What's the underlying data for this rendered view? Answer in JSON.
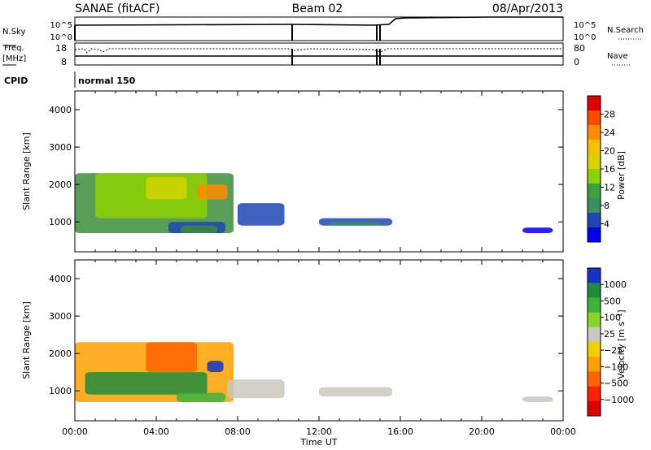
{
  "header": {
    "title": "SANAE (fitACF)",
    "beam": "Beam 02",
    "date": "08/Apr/2013"
  },
  "summary_panel": {
    "nsky_label": "N.Sky",
    "nsky_ticks": [
      "10^5",
      "10^0"
    ],
    "nsearch_label": "N.Search",
    "nsearch_ticks": [
      "10^5",
      "10^0"
    ],
    "freq_label": "Freq.",
    "freq_unit": "[MHz]",
    "freq_ticks": [
      "18",
      "8"
    ],
    "nave_label": "Nave",
    "nave_ticks": [
      "80",
      "0"
    ],
    "cpid_label": "CPID",
    "cpid_value": "normal 150"
  },
  "chart_data": [
    {
      "type": "heatmap",
      "name": "power-panel",
      "ylabel": "Slant Range [km]",
      "yticks": [
        "4000",
        "3000",
        "2000",
        "1000"
      ],
      "ylim": [
        200,
        4500
      ],
      "xlim_hours": [
        0,
        24
      ],
      "colorbar": {
        "label": "Power [dB]",
        "ticks": [
          "28",
          "24",
          "20",
          "16",
          "12",
          "8",
          "4"
        ],
        "colors": [
          "#e00000",
          "#ff4a00",
          "#ff8c00",
          "#f5c000",
          "#d4d400",
          "#8cd200",
          "#3ca03c",
          "#3c8c64",
          "#1e46b4",
          "#0000e6"
        ]
      },
      "patches": [
        {
          "x": [
            0.0,
            7.8
          ],
          "y": [
            700,
            2300
          ],
          "color": "#3c8c3c"
        },
        {
          "x": [
            1.0,
            6.5
          ],
          "y": [
            1100,
            2300
          ],
          "color": "#8cd200"
        },
        {
          "x": [
            3.5,
            5.5
          ],
          "y": [
            1600,
            2200
          ],
          "color": "#d4d400"
        },
        {
          "x": [
            6.0,
            7.5
          ],
          "y": [
            1600,
            2000
          ],
          "color": "#ff8c00"
        },
        {
          "x": [
            4.6,
            7.4
          ],
          "y": [
            700,
            1000
          ],
          "color": "#1e46b4"
        },
        {
          "x": [
            5.2,
            7.0
          ],
          "y": [
            700,
            900
          ],
          "color": "#3c8c3c"
        },
        {
          "x": [
            8.0,
            10.3
          ],
          "y": [
            900,
            1500
          ],
          "color": "#1e46b4"
        },
        {
          "x": [
            12.0,
            15.6
          ],
          "y": [
            900,
            1100
          ],
          "color": "#1e46b4"
        },
        {
          "x": [
            12.5,
            15.0
          ],
          "y": [
            900,
            1000
          ],
          "color": "#3c8c64"
        },
        {
          "x": [
            22.0,
            23.5
          ],
          "y": [
            700,
            850
          ],
          "color": "#0000e6"
        }
      ]
    },
    {
      "type": "heatmap",
      "name": "velocity-panel",
      "ylabel": "Slant Range [km]",
      "yticks": [
        "4000",
        "3000",
        "2000",
        "1000"
      ],
      "ylim": [
        200,
        4500
      ],
      "xlim_hours": [
        0,
        24
      ],
      "colorbar": {
        "label": "Velocity [m s⁻¹]",
        "ticks": [
          "1000",
          "500",
          "100",
          "25",
          "−25",
          "−100",
          "−500",
          "−1000"
        ],
        "colors": [
          "#1432c8",
          "#1e8c3c",
          "#3cb43c",
          "#8cd228",
          "#c8c8c0",
          "#f0d000",
          "#ffa000",
          "#ff6400",
          "#ff1e00",
          "#dc0000"
        ]
      },
      "patches": [
        {
          "x": [
            0.0,
            7.8
          ],
          "y": [
            700,
            2300
          ],
          "color": "#ffa000"
        },
        {
          "x": [
            0.5,
            6.5
          ],
          "y": [
            900,
            1500
          ],
          "color": "#1e8c3c"
        },
        {
          "x": [
            3.5,
            6.0
          ],
          "y": [
            1500,
            2300
          ],
          "color": "#ff6400"
        },
        {
          "x": [
            6.5,
            7.3
          ],
          "y": [
            1500,
            1800
          ],
          "color": "#1432c8"
        },
        {
          "x": [
            5.0,
            7.4
          ],
          "y": [
            700,
            950
          ],
          "color": "#3cb43c"
        },
        {
          "x": [
            7.5,
            10.3
          ],
          "y": [
            800,
            1300
          ],
          "color": "#c8c8c0"
        },
        {
          "x": [
            12.0,
            15.6
          ],
          "y": [
            850,
            1100
          ],
          "color": "#c8c8c0"
        },
        {
          "x": [
            22.0,
            23.5
          ],
          "y": [
            700,
            850
          ],
          "color": "#c8c8c0"
        }
      ]
    }
  ],
  "x_axis": {
    "ticks": [
      "00:00",
      "04:00",
      "08:00",
      "12:00",
      "16:00",
      "20:00",
      "00:00"
    ],
    "label": "Time UT"
  }
}
